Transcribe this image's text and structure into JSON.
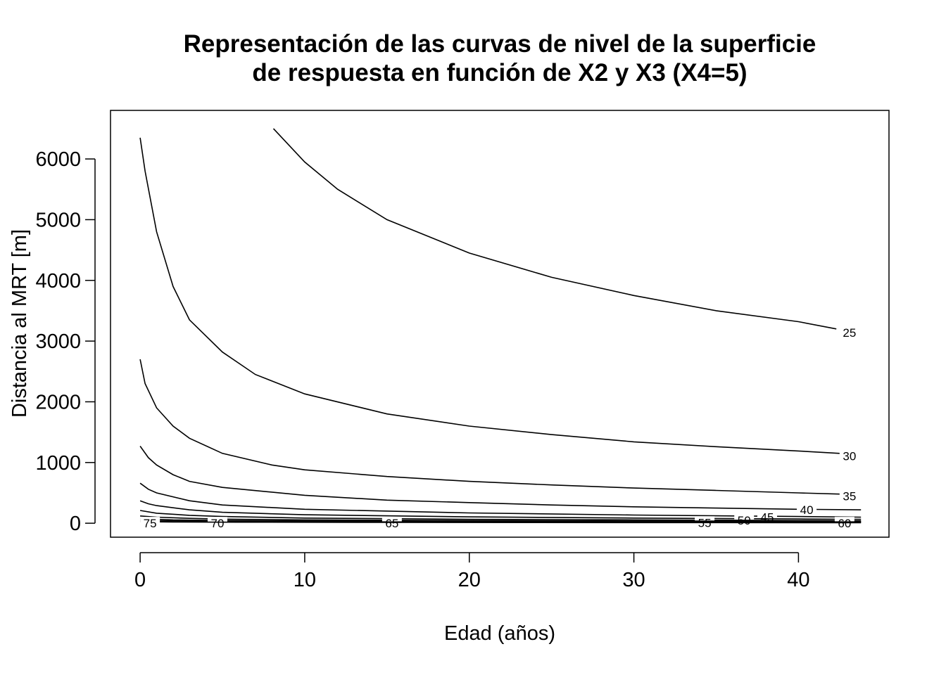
{
  "chart_data": {
    "type": "contour",
    "title": "Representación de las curvas de nivel de la superficie de respuesta en función de X2 y X3 (X4=5)",
    "title_lines": [
      "Representación de las curvas de nivel de la superficie",
      "de respuesta en función de X2 y X3 (X4=5)"
    ],
    "xlabel": "Edad (años)",
    "ylabel": "Distancia al MRT [m]",
    "xlim": [
      -1.8,
      45.5
    ],
    "ylim": [
      -230,
      6800
    ],
    "x_ticks": [
      0,
      10,
      20,
      30,
      40
    ],
    "y_ticks": [
      0,
      1000,
      2000,
      3000,
      4000,
      5000,
      6000
    ],
    "grid": false,
    "legend": "none",
    "line_color": "#000000",
    "contours": [
      {
        "level": "25",
        "points": [
          [
            8.1,
            6500
          ],
          [
            10,
            5950
          ],
          [
            12,
            5500
          ],
          [
            15,
            5000
          ],
          [
            20,
            4450
          ],
          [
            25,
            4050
          ],
          [
            30,
            3750
          ],
          [
            35,
            3500
          ],
          [
            40,
            3320
          ],
          [
            42.3,
            3200
          ]
        ],
        "label_at": [
          43.1,
          3140
        ]
      },
      {
        "level": "30",
        "points": [
          [
            0,
            6350
          ],
          [
            0.3,
            5800
          ],
          [
            1,
            4800
          ],
          [
            2,
            3900
          ],
          [
            3,
            3350
          ],
          [
            5,
            2820
          ],
          [
            7,
            2450
          ],
          [
            10,
            2130
          ],
          [
            15,
            1800
          ],
          [
            20,
            1600
          ],
          [
            25,
            1460
          ],
          [
            30,
            1340
          ],
          [
            35,
            1260
          ],
          [
            40,
            1190
          ],
          [
            42.5,
            1150
          ]
        ],
        "label_at": [
          43.1,
          1110
        ]
      },
      {
        "level": "35",
        "points": [
          [
            0,
            2700
          ],
          [
            0.3,
            2300
          ],
          [
            1,
            1900
          ],
          [
            2,
            1600
          ],
          [
            3,
            1400
          ],
          [
            5,
            1150
          ],
          [
            8,
            960
          ],
          [
            10,
            880
          ],
          [
            15,
            770
          ],
          [
            20,
            690
          ],
          [
            25,
            630
          ],
          [
            30,
            580
          ],
          [
            35,
            540
          ],
          [
            40,
            500
          ],
          [
            42.5,
            480
          ]
        ],
        "label_at": [
          43.1,
          450
        ]
      },
      {
        "level": "40",
        "points": [
          [
            0,
            1270
          ],
          [
            0.5,
            1080
          ],
          [
            1,
            960
          ],
          [
            2,
            800
          ],
          [
            3,
            690
          ],
          [
            5,
            590
          ],
          [
            10,
            460
          ],
          [
            15,
            380
          ],
          [
            20,
            340
          ],
          [
            25,
            300
          ],
          [
            30,
            270
          ],
          [
            35,
            250
          ],
          [
            40,
            230
          ],
          [
            43.8,
            220
          ]
        ],
        "label_at": [
          40.5,
          220
        ]
      },
      {
        "level": "45",
        "points": [
          [
            0,
            660
          ],
          [
            0.5,
            560
          ],
          [
            1,
            500
          ],
          [
            3,
            370
          ],
          [
            5,
            300
          ],
          [
            10,
            230
          ],
          [
            20,
            170
          ],
          [
            30,
            135
          ],
          [
            40,
            110
          ],
          [
            43.8,
            100
          ]
        ],
        "label_at": [
          38.1,
          100
        ]
      },
      {
        "level": "50",
        "points": [
          [
            0,
            370
          ],
          [
            0.5,
            320
          ],
          [
            1,
            290
          ],
          [
            3,
            220
          ],
          [
            5,
            180
          ],
          [
            10,
            140
          ],
          [
            20,
            105
          ],
          [
            30,
            85
          ],
          [
            40,
            70
          ],
          [
            43.8,
            65
          ]
        ],
        "label_at": [
          36.7,
          50
        ]
      },
      {
        "level": "55",
        "points": [
          [
            0,
            210
          ],
          [
            1,
            165
          ],
          [
            3,
            130
          ],
          [
            5,
            110
          ],
          [
            10,
            85
          ],
          [
            20,
            65
          ],
          [
            30,
            55
          ],
          [
            40,
            45
          ],
          [
            43.8,
            42
          ]
        ],
        "label_at": [
          34.3,
          10
        ]
      },
      {
        "level": "60",
        "points": [
          [
            0,
            120
          ],
          [
            1,
            100
          ],
          [
            3,
            80
          ],
          [
            5,
            68
          ],
          [
            10,
            55
          ],
          [
            20,
            45
          ],
          [
            30,
            38
          ],
          [
            40,
            33
          ],
          [
            43.8,
            30
          ]
        ],
        "label_at": [
          42.8,
          0
        ]
      },
      {
        "level": "65",
        "points": [
          [
            0,
            75
          ],
          [
            2,
            55
          ],
          [
            5,
            45
          ],
          [
            10,
            38
          ],
          [
            20,
            30
          ],
          [
            30,
            26
          ],
          [
            40,
            23
          ],
          [
            43.8,
            22
          ]
        ],
        "label_at": [
          15.3,
          0
        ]
      },
      {
        "level": "70",
        "points": [
          [
            0,
            45
          ],
          [
            3,
            35
          ],
          [
            6,
            30
          ],
          [
            10,
            25
          ],
          [
            20,
            20
          ],
          [
            30,
            17
          ],
          [
            43.8,
            15
          ]
        ],
        "label_at": [
          4.7,
          0
        ]
      },
      {
        "level": "75",
        "points": [
          [
            0,
            25
          ],
          [
            2,
            20
          ],
          [
            6,
            17
          ],
          [
            15,
            13
          ],
          [
            30,
            10
          ],
          [
            43.8,
            8
          ]
        ],
        "label_at": [
          0.6,
          0
        ]
      }
    ]
  }
}
